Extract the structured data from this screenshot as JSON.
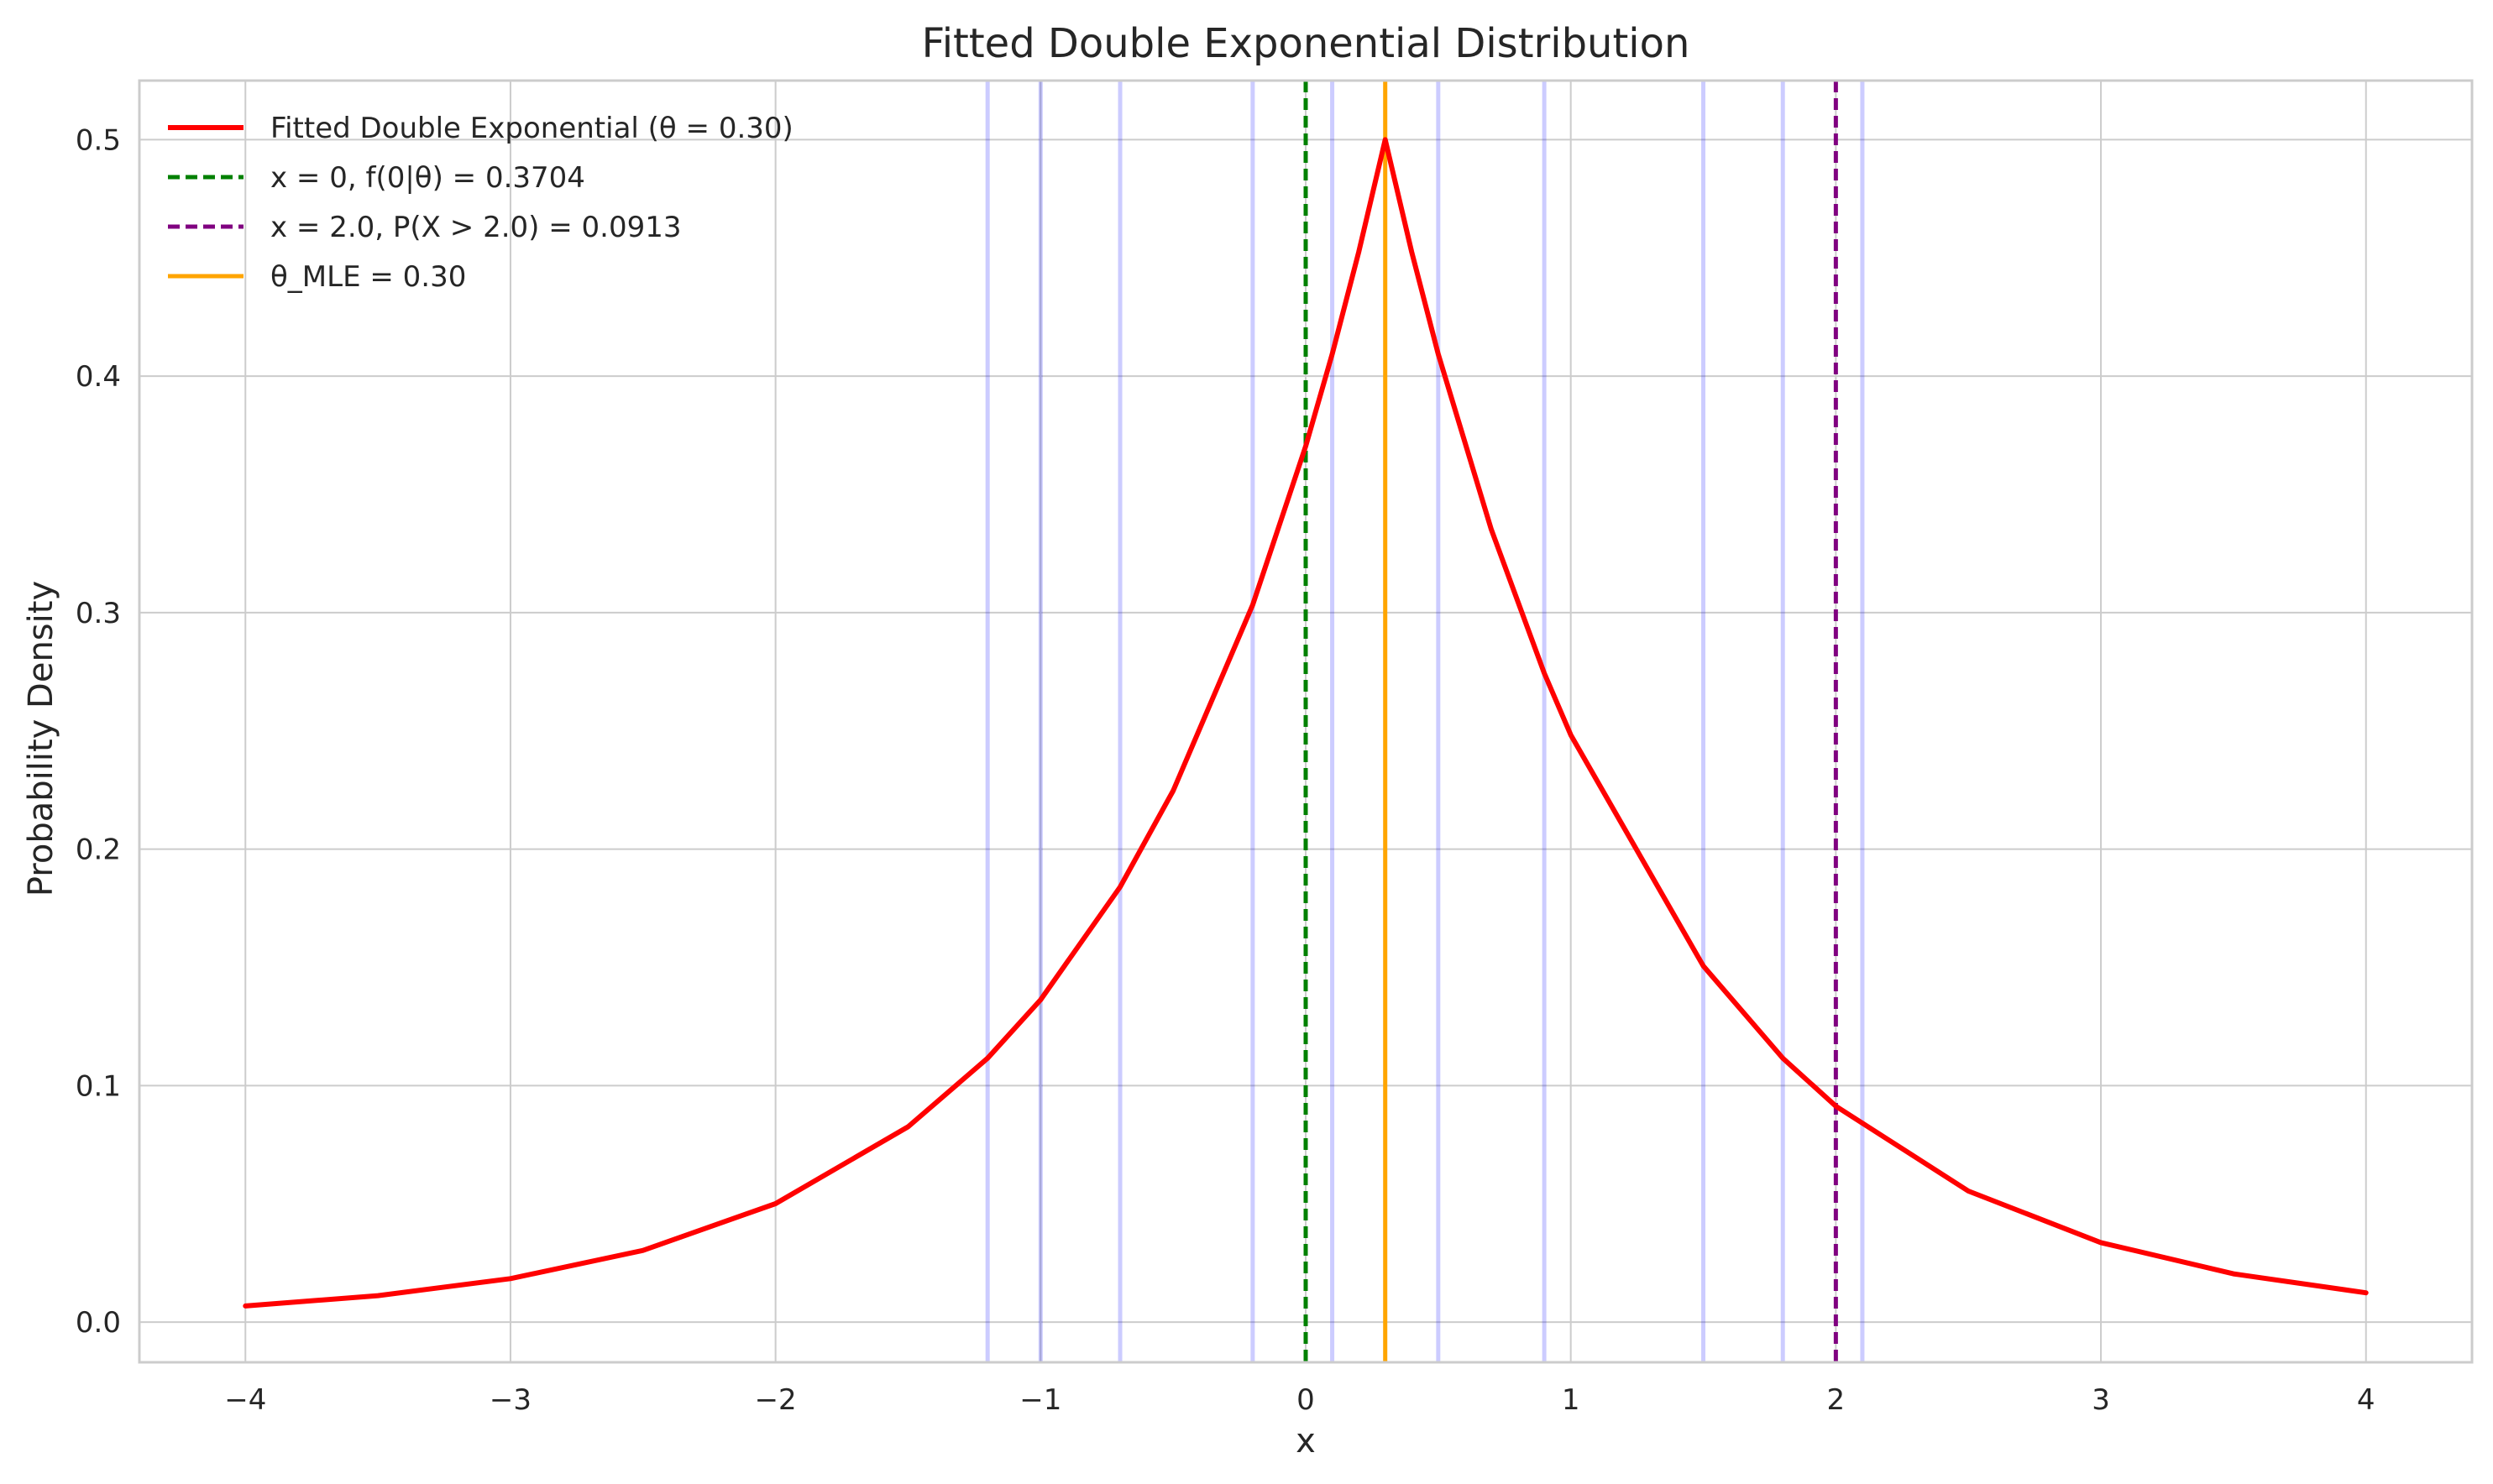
{
  "chart_data": {
    "type": "line",
    "title": "Fitted Double Exponential Distribution",
    "xlabel": "x",
    "ylabel": "Probability Density",
    "xlim": [
      -4.4,
      4.4
    ],
    "ylim": [
      -0.017,
      0.525
    ],
    "x_ticks": [
      -4,
      -3,
      -2,
      -1,
      0,
      1,
      2,
      3,
      4
    ],
    "x_tick_labels": [
      "−4",
      "−3",
      "−2",
      "−1",
      "0",
      "1",
      "2",
      "3",
      "4"
    ],
    "y_ticks": [
      0.0,
      0.1,
      0.2,
      0.3,
      0.4,
      0.5
    ],
    "y_tick_labels": [
      "0.0",
      "0.1",
      "0.2",
      "0.3",
      "0.4",
      "0.5"
    ],
    "grid": true,
    "legend_position": "top-left",
    "series": [
      {
        "name": "Fitted Double Exponential (θ = 0.30)",
        "style": "solid",
        "color": "#ff0000",
        "x": [
          -4.0,
          -3.5,
          -3.0,
          -2.5,
          -2.0,
          -1.5,
          -1.2,
          -1.0,
          -0.7,
          -0.5,
          -0.2,
          0.0,
          0.1,
          0.2,
          0.3,
          0.4,
          0.5,
          0.7,
          0.9,
          1.0,
          1.5,
          1.8,
          2.0,
          2.5,
          3.0,
          3.5,
          4.0
        ],
        "y": [
          0.0068,
          0.0112,
          0.0184,
          0.0303,
          0.0501,
          0.0826,
          0.1116,
          0.1363,
          0.184,
          0.2247,
          0.3033,
          0.3704,
          0.4094,
          0.4524,
          0.5,
          0.4524,
          0.4094,
          0.3352,
          0.2744,
          0.2483,
          0.1506,
          0.1116,
          0.0913,
          0.0554,
          0.0336,
          0.0204,
          0.0124
        ]
      }
    ],
    "vlines": [
      {
        "name": "x = 0, f(0|θ) = 0.3704",
        "x": 0.0,
        "style": "dashed",
        "color": "#008000",
        "in_legend": true
      },
      {
        "name": "x = 2.0, P(X > 2.0) = 0.0913",
        "x": 2.0,
        "style": "dashed",
        "color": "#800080",
        "in_legend": true
      },
      {
        "name": "θ_MLE = 0.30",
        "x": 0.3,
        "style": "solid",
        "color": "#ffa500",
        "in_legend": true
      }
    ],
    "data_rug": {
      "color": "#0000ff",
      "opacity": 0.2,
      "x": [
        -1.2,
        -1.0,
        -0.7,
        -0.2,
        0.1,
        0.5,
        0.9,
        1.5,
        1.8,
        2.1
      ]
    }
  }
}
